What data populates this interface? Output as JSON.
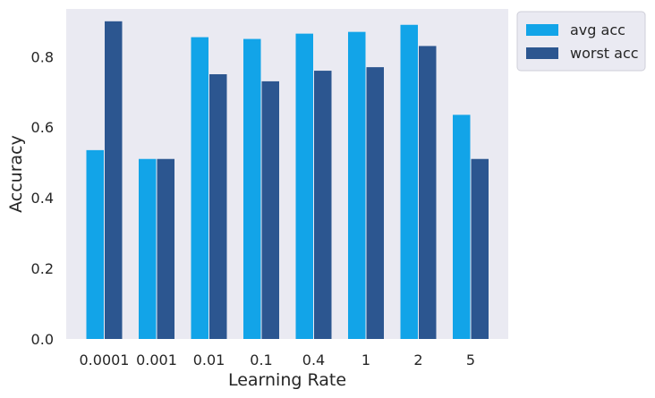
{
  "chart_data": {
    "type": "bar",
    "xlabel": "Learning Rate",
    "ylabel": "Accuracy",
    "categories": [
      "0.0001",
      "0.001",
      "0.01",
      "0.1",
      "0.4",
      "1",
      "2",
      "5"
    ],
    "series": [
      {
        "name": "avg acc",
        "color": "#12a4e8",
        "values": [
          0.535,
          0.51,
          0.855,
          0.85,
          0.865,
          0.87,
          0.89,
          0.635
        ]
      },
      {
        "name": "worst acc",
        "color": "#2c5690",
        "values": [
          0.9,
          0.51,
          0.75,
          0.73,
          0.76,
          0.77,
          0.83,
          0.51
        ]
      }
    ],
    "ylim": [
      0,
      0.935
    ],
    "yticks": [
      0.0,
      0.2,
      0.4,
      0.6,
      0.8
    ],
    "ytick_labels": [
      "0.0",
      "0.2",
      "0.4",
      "0.6",
      "0.8"
    ],
    "grid": false,
    "background": "#eaeaf2",
    "legend_placement": "outside-top-right"
  }
}
